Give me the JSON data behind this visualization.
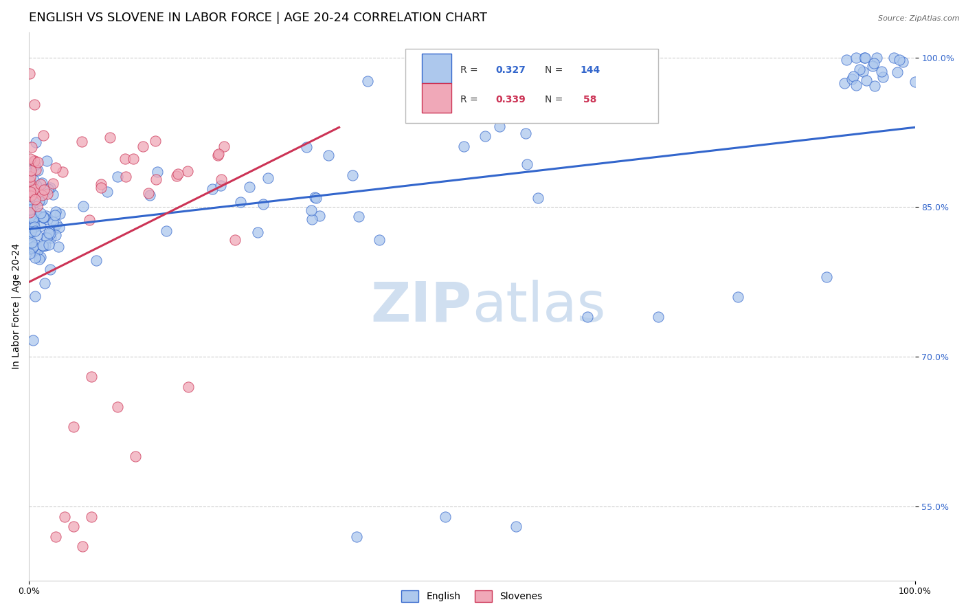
{
  "title": "ENGLISH VS SLOVENE IN LABOR FORCE | AGE 20-24 CORRELATION CHART",
  "source_text": "Source: ZipAtlas.com",
  "ylabel": "In Labor Force | Age 20-24",
  "xmin": 0.0,
  "xmax": 1.0,
  "ymin": 0.476,
  "ymax": 1.025,
  "yticks": [
    0.55,
    0.7,
    0.85,
    1.0
  ],
  "ytick_labels": [
    "55.0%",
    "70.0%",
    "85.0%",
    "100.0%"
  ],
  "xticks": [
    0.0,
    1.0
  ],
  "xtick_labels": [
    "0.0%",
    "100.0%"
  ],
  "english_R": 0.327,
  "english_N": 144,
  "slovene_R": 0.339,
  "slovene_N": 58,
  "english_color": "#adc8ed",
  "slovene_color": "#f0a8b8",
  "english_line_color": "#3366cc",
  "slovene_line_color": "#cc3355",
  "watermark_color": "#d0dff0",
  "title_fontsize": 13,
  "axis_label_fontsize": 10,
  "tick_fontsize": 9,
  "eng_line_x0": 0.0,
  "eng_line_x1": 1.0,
  "eng_line_y0": 0.828,
  "eng_line_y1": 0.93,
  "slo_line_x0": 0.0,
  "slo_line_x1": 0.35,
  "slo_line_y0": 0.775,
  "slo_line_y1": 0.93
}
